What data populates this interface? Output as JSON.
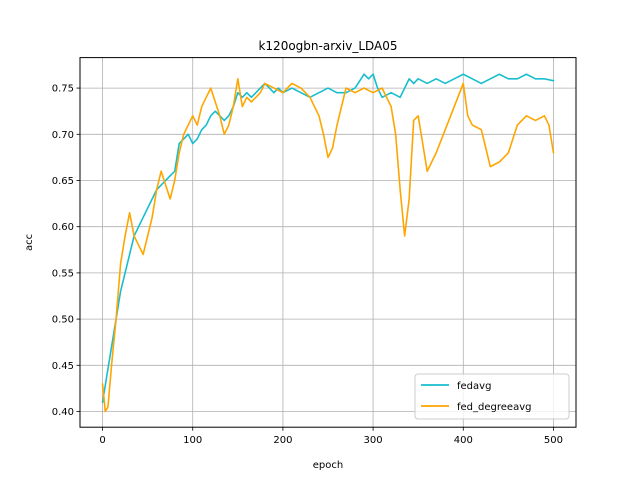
{
  "chart_data": {
    "type": "line",
    "title": "k120ogbn-arxiv_LDA05",
    "xlabel": "epoch",
    "ylabel": "acc",
    "xlim": [
      -25,
      525
    ],
    "ylim": [
      0.383,
      0.783
    ],
    "xticks": [
      0,
      100,
      200,
      300,
      400,
      500
    ],
    "yticks": [
      0.4,
      0.45,
      0.5,
      0.55,
      0.6,
      0.65,
      0.7,
      0.75
    ],
    "ytick_labels": [
      "0.40",
      "0.45",
      "0.50",
      "0.55",
      "0.60",
      "0.65",
      "0.70",
      "0.75"
    ],
    "grid": true,
    "legend_position": "lower-right",
    "series": [
      {
        "name": "fedavg",
        "color": "#17becf",
        "x": [
          0,
          5,
          10,
          15,
          20,
          25,
          30,
          35,
          40,
          45,
          50,
          55,
          60,
          65,
          70,
          75,
          80,
          85,
          90,
          95,
          100,
          105,
          110,
          115,
          120,
          125,
          130,
          135,
          140,
          145,
          150,
          155,
          160,
          165,
          170,
          175,
          180,
          185,
          190,
          195,
          200,
          210,
          220,
          230,
          240,
          250,
          260,
          270,
          280,
          290,
          295,
          300,
          305,
          310,
          320,
          330,
          340,
          345,
          350,
          360,
          370,
          380,
          390,
          400,
          410,
          420,
          430,
          440,
          450,
          460,
          470,
          480,
          490,
          500
        ],
        "y": [
          0.41,
          0.44,
          0.47,
          0.5,
          0.53,
          0.55,
          0.57,
          0.59,
          0.6,
          0.61,
          0.62,
          0.63,
          0.64,
          0.645,
          0.65,
          0.655,
          0.66,
          0.69,
          0.695,
          0.7,
          0.69,
          0.695,
          0.705,
          0.71,
          0.72,
          0.725,
          0.72,
          0.715,
          0.72,
          0.73,
          0.745,
          0.74,
          0.745,
          0.74,
          0.745,
          0.75,
          0.755,
          0.75,
          0.745,
          0.75,
          0.745,
          0.75,
          0.745,
          0.74,
          0.745,
          0.75,
          0.745,
          0.745,
          0.75,
          0.765,
          0.76,
          0.765,
          0.75,
          0.74,
          0.745,
          0.74,
          0.76,
          0.755,
          0.76,
          0.755,
          0.76,
          0.755,
          0.76,
          0.765,
          0.76,
          0.755,
          0.76,
          0.765,
          0.76,
          0.76,
          0.765,
          0.76,
          0.76,
          0.758
        ]
      },
      {
        "name": "fed_degreeavg",
        "color": "#ffa500",
        "x": [
          0,
          3,
          6,
          10,
          15,
          20,
          25,
          30,
          35,
          40,
          45,
          50,
          55,
          60,
          65,
          70,
          75,
          80,
          85,
          90,
          95,
          100,
          105,
          110,
          115,
          120,
          125,
          130,
          135,
          140,
          145,
          150,
          155,
          160,
          165,
          170,
          175,
          180,
          190,
          200,
          210,
          220,
          230,
          240,
          245,
          250,
          255,
          260,
          265,
          270,
          280,
          290,
          300,
          310,
          320,
          325,
          330,
          335,
          340,
          345,
          350,
          355,
          360,
          370,
          380,
          390,
          400,
          405,
          410,
          420,
          430,
          440,
          450,
          460,
          470,
          480,
          490,
          495,
          500
        ],
        "y": [
          0.43,
          0.4,
          0.405,
          0.45,
          0.5,
          0.56,
          0.59,
          0.615,
          0.59,
          0.58,
          0.57,
          0.59,
          0.61,
          0.64,
          0.66,
          0.645,
          0.63,
          0.65,
          0.68,
          0.7,
          0.71,
          0.72,
          0.71,
          0.73,
          0.74,
          0.75,
          0.735,
          0.72,
          0.7,
          0.71,
          0.73,
          0.76,
          0.73,
          0.74,
          0.735,
          0.74,
          0.745,
          0.755,
          0.75,
          0.745,
          0.755,
          0.75,
          0.74,
          0.72,
          0.7,
          0.675,
          0.685,
          0.71,
          0.73,
          0.75,
          0.745,
          0.75,
          0.745,
          0.75,
          0.73,
          0.7,
          0.64,
          0.59,
          0.63,
          0.715,
          0.72,
          0.69,
          0.66,
          0.68,
          0.705,
          0.73,
          0.755,
          0.72,
          0.71,
          0.705,
          0.665,
          0.67,
          0.68,
          0.71,
          0.72,
          0.715,
          0.72,
          0.71,
          0.68
        ]
      }
    ]
  }
}
